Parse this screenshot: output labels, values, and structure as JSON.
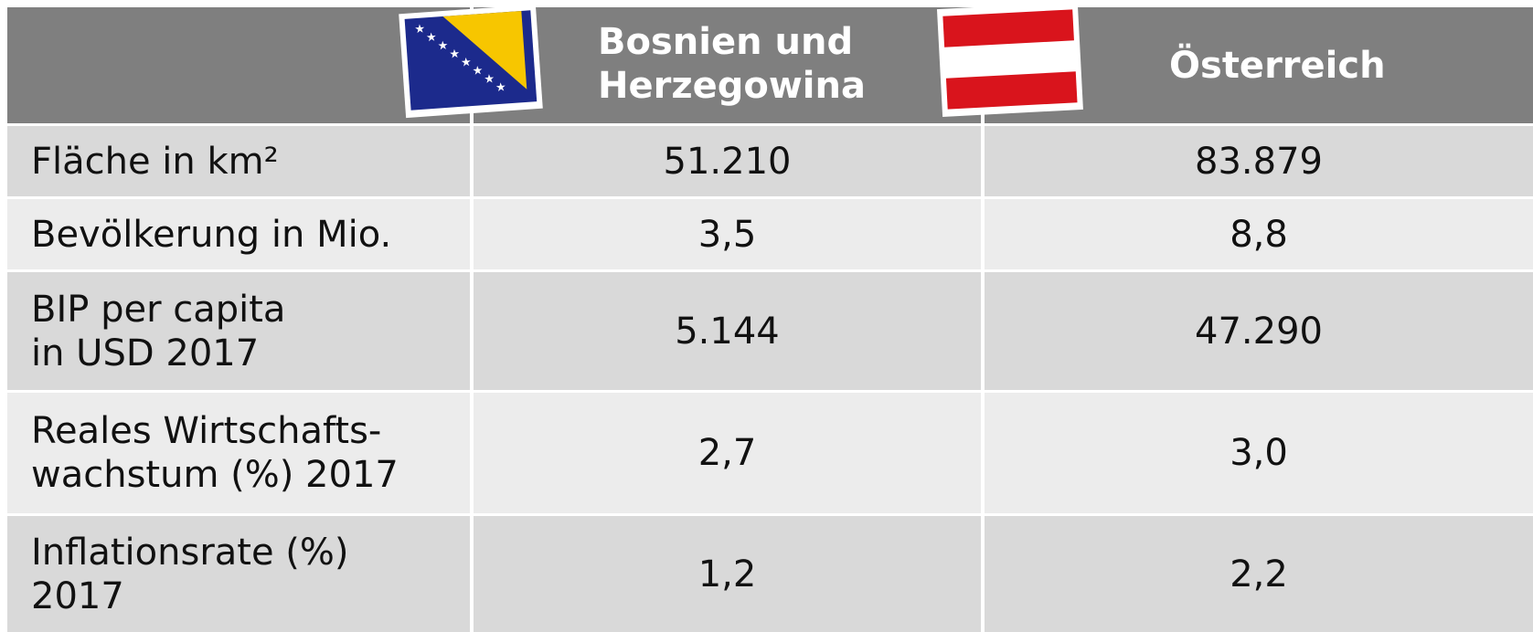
{
  "table": {
    "columns": [
      "Bosnien und Herzegowina",
      "Österreich"
    ],
    "rows": [
      {
        "label": [
          "Fläche in km²"
        ],
        "values": [
          "51.210",
          "83.879"
        ]
      },
      {
        "label": [
          "Bevölkerung in Mio."
        ],
        "values": [
          "3,5",
          "8,8"
        ]
      },
      {
        "label": [
          "BIP per capita",
          "in USD 2017"
        ],
        "values": [
          "5.144",
          "47.290"
        ]
      },
      {
        "label": [
          "Reales Wirtschafts-",
          "wachstum (%) 2017"
        ],
        "values": [
          "2,7",
          "3,0"
        ]
      },
      {
        "label": [
          "Inflationsrate (%)",
          "2017"
        ],
        "values": [
          "1,2",
          "2,2"
        ]
      }
    ]
  }
}
